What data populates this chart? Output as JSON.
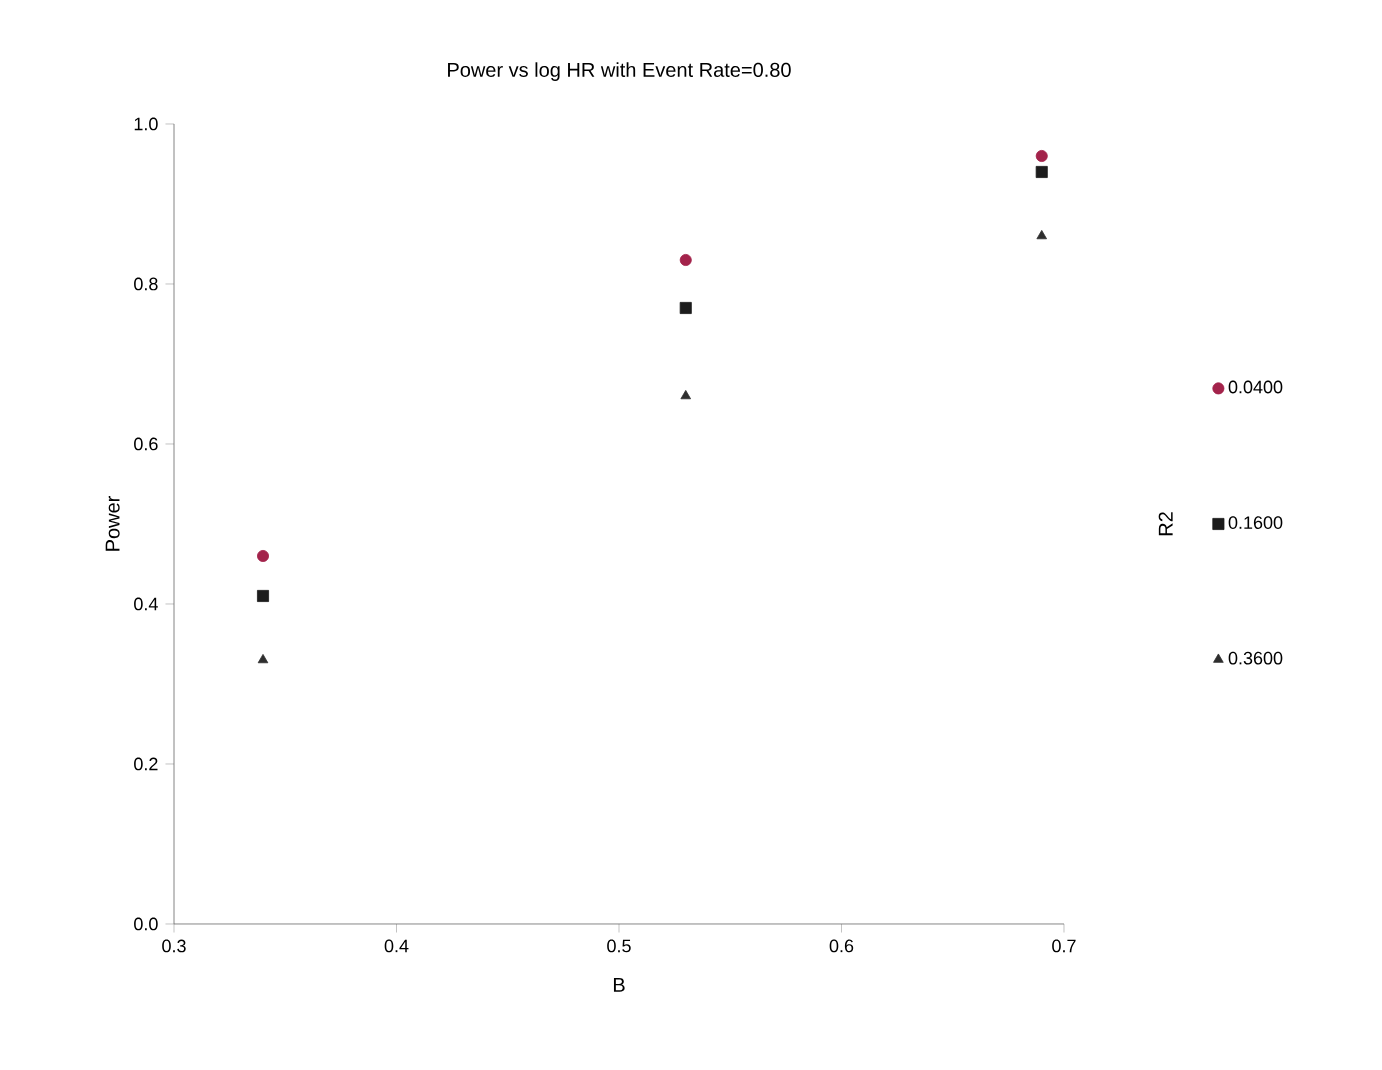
{
  "chart_data": {
    "type": "scatter",
    "title": "Power vs log HR with Event Rate=0.80",
    "xlabel": "B",
    "ylabel": "Power",
    "legend_title": "R2",
    "x": [
      0.34,
      0.53,
      0.69
    ],
    "series": [
      {
        "name": "0.0400",
        "color": "#a3234b",
        "marker": "circle",
        "values": [
          0.46,
          0.83,
          0.96
        ]
      },
      {
        "name": "0.1600",
        "color": "#1c1c1c",
        "marker": "square",
        "values": [
          0.41,
          0.77,
          0.94
        ]
      },
      {
        "name": "0.3600",
        "color": "#2e2e2e",
        "marker": "triangle",
        "values": [
          0.33,
          0.66,
          0.86
        ]
      }
    ],
    "xlim": [
      0.3,
      0.7
    ],
    "xticks": [
      {
        "value": 0.3,
        "label": "0.3"
      },
      {
        "value": 0.4,
        "label": "0.4"
      },
      {
        "value": 0.5,
        "label": "0.5"
      },
      {
        "value": 0.6,
        "label": "0.6"
      },
      {
        "value": 0.7,
        "label": "0.7"
      }
    ],
    "ylim": [
      0,
      1
    ],
    "yticks": [
      {
        "value": 0,
        "label": "0.0"
      },
      {
        "value": 0.2,
        "label": "0.2"
      },
      {
        "value": 0.4,
        "label": "0.4"
      },
      {
        "value": 0.6,
        "label": "0.6"
      },
      {
        "value": 0.8,
        "label": "0.8"
      },
      {
        "value": 1,
        "label": "1.0"
      }
    ],
    "grid": false,
    "legend": "right"
  }
}
